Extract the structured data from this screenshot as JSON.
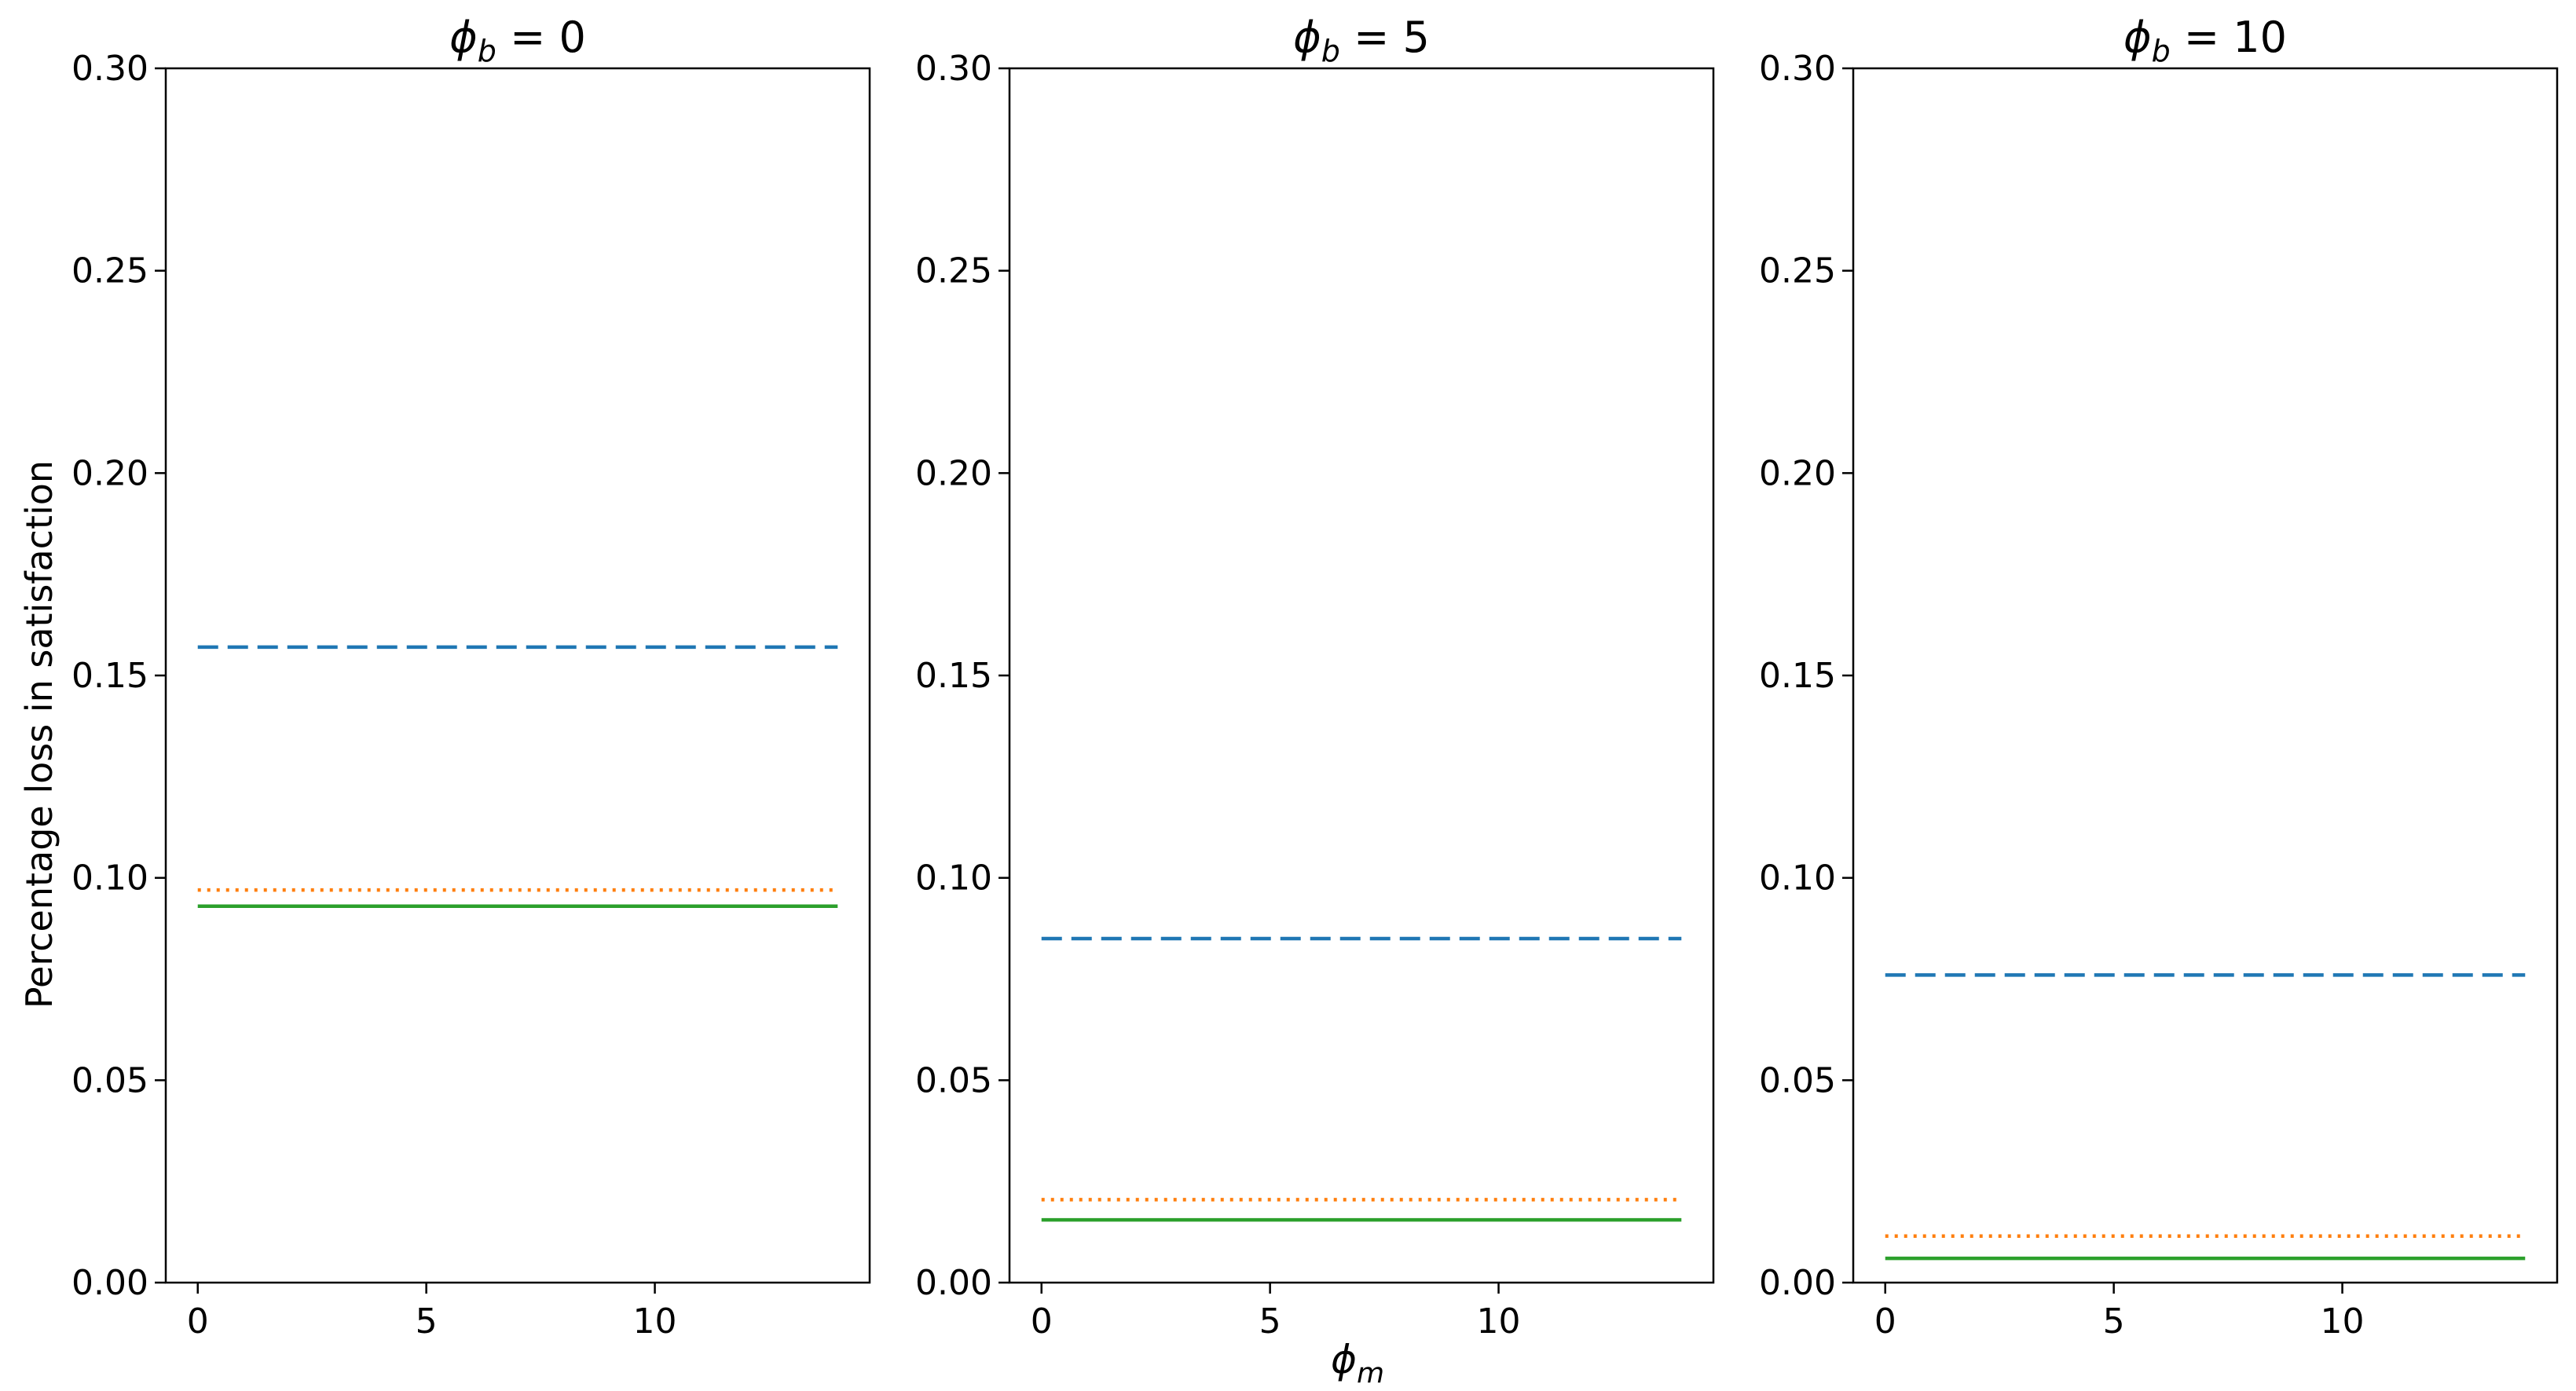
{
  "figure": {
    "ylabel": "Percentage loss in satisfaction",
    "xlabel_main": "ϕ",
    "xlabel_sub": "m"
  },
  "chart_data": [
    {
      "type": "line",
      "title_main": "ϕ",
      "title_sub": "b",
      "title_rest": " = 0",
      "ylabel": "Percentage loss in satisfaction",
      "xlabel": "",
      "xlim": [
        -0.7,
        14.7
      ],
      "ylim": [
        0,
        0.3
      ],
      "xticks": [
        0,
        5,
        10
      ],
      "xtick_labels": [
        "0",
        "5",
        "10"
      ],
      "yticks": [
        0,
        0.05,
        0.1,
        0.15,
        0.2,
        0.25,
        0.3
      ],
      "ytick_labels": [
        "0.00",
        "0.05",
        "0.10",
        "0.15",
        "0.20",
        "0.25",
        "0.30"
      ],
      "x": [
        0,
        14
      ],
      "series": [
        {
          "style": "dashed",
          "color": "#1f77b4",
          "values": [
            0.157,
            0.157
          ]
        },
        {
          "style": "dotted",
          "color": "#ff7f0e",
          "values": [
            0.097,
            0.097
          ]
        },
        {
          "style": "solid",
          "color": "#2ca02c",
          "values": [
            0.093,
            0.093
          ]
        }
      ]
    },
    {
      "type": "line",
      "title_main": "ϕ",
      "title_sub": "b",
      "title_rest": " = 5",
      "ylabel": "",
      "xlabel": "ϕm",
      "xlim": [
        -0.7,
        14.7
      ],
      "ylim": [
        0,
        0.3
      ],
      "xticks": [
        0,
        5,
        10
      ],
      "xtick_labels": [
        "0",
        "5",
        "10"
      ],
      "yticks": [
        0,
        0.05,
        0.1,
        0.15,
        0.2,
        0.25,
        0.3
      ],
      "ytick_labels": [
        "0.00",
        "0.05",
        "0.10",
        "0.15",
        "0.20",
        "0.25",
        "0.30"
      ],
      "x": [
        0,
        14
      ],
      "series": [
        {
          "style": "dashed",
          "color": "#1f77b4",
          "values": [
            0.085,
            0.085
          ]
        },
        {
          "style": "dotted",
          "color": "#ff7f0e",
          "values": [
            0.0205,
            0.0205
          ]
        },
        {
          "style": "solid",
          "color": "#2ca02c",
          "values": [
            0.0155,
            0.0155
          ]
        }
      ]
    },
    {
      "type": "line",
      "title_main": "ϕ",
      "title_sub": "b",
      "title_rest": " = 10",
      "ylabel": "",
      "xlabel": "",
      "xlim": [
        -0.7,
        14.7
      ],
      "ylim": [
        0,
        0.3
      ],
      "xticks": [
        0,
        5,
        10
      ],
      "xtick_labels": [
        "0",
        "5",
        "10"
      ],
      "yticks": [
        0,
        0.05,
        0.1,
        0.15,
        0.2,
        0.25,
        0.3
      ],
      "ytick_labels": [
        "0.00",
        "0.05",
        "0.10",
        "0.15",
        "0.20",
        "0.25",
        "0.30"
      ],
      "x": [
        0,
        14
      ],
      "series": [
        {
          "style": "dashed",
          "color": "#1f77b4",
          "values": [
            0.076,
            0.076
          ]
        },
        {
          "style": "dotted",
          "color": "#ff7f0e",
          "values": [
            0.0115,
            0.0115
          ]
        },
        {
          "style": "solid",
          "color": "#2ca02c",
          "values": [
            0.006,
            0.006
          ]
        }
      ]
    }
  ]
}
